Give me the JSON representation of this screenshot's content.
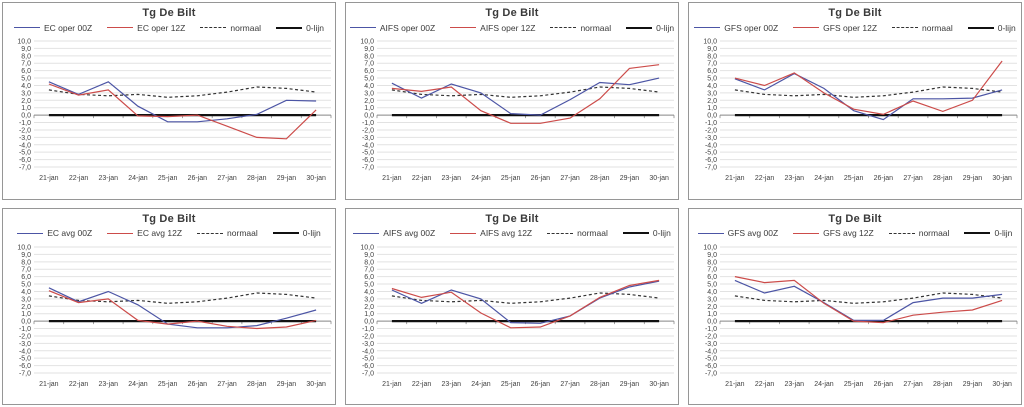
{
  "colors": {
    "series_blue": "#4c55a5",
    "series_red": "#cc4c4a",
    "normaal": "#333333",
    "zero_line": "#111111",
    "grid": "#e2e2e2",
    "axis": "#8a8a8a",
    "panel_border": "#969696",
    "text": "#3a3a3a"
  },
  "axis": {
    "ytick_labels": [
      "10,0",
      "9,0",
      "8,0",
      "7,0",
      "6,0",
      "5,0",
      "4,0",
      "3,0",
      "2,0",
      "1,0",
      "0,0",
      "-1,0",
      "-2,0",
      "-3,0",
      "-4,0",
      "-5,0",
      "-6,0",
      "-7,0"
    ],
    "ylim": [
      -7,
      10
    ],
    "grid": true,
    "legend_position": "top"
  },
  "chart_data": [
    {
      "type": "line",
      "title": "Tg De Bilt",
      "categories": [
        "21-jan",
        "22-jan",
        "23-jan",
        "24-jan",
        "25-jan",
        "26-jan",
        "27-jan",
        "28-jan",
        "29-jan",
        "30-jan"
      ],
      "ylim": [
        -7,
        10
      ],
      "series": [
        {
          "name": "EC oper 00Z",
          "color": "#4c55a5",
          "style": "solid",
          "values": [
            4.5,
            2.8,
            4.5,
            1.2,
            -0.9,
            -0.9,
            -0.5,
            0.1,
            2.0,
            1.9
          ]
        },
        {
          "name": "EC oper 12Z",
          "color": "#cc4c4a",
          "style": "solid",
          "values": [
            4.2,
            2.7,
            3.4,
            -0.1,
            -0.2,
            0.0,
            -1.5,
            -3.0,
            -3.2,
            0.7
          ]
        },
        {
          "name": "normaal",
          "color": "#333333",
          "style": "dashed",
          "values": [
            3.4,
            2.8,
            2.6,
            2.8,
            2.4,
            2.6,
            3.1,
            3.8,
            3.6,
            3.1
          ]
        },
        {
          "name": "0-lijn",
          "color": "#111111",
          "style": "solid-thick",
          "values": [
            0,
            0,
            0,
            0,
            0,
            0,
            0,
            0,
            0,
            0
          ]
        }
      ]
    },
    {
      "type": "line",
      "title": "Tg De Bilt",
      "categories": [
        "21-jan",
        "22-jan",
        "23-jan",
        "24-jan",
        "25-jan",
        "26-jan",
        "27-jan",
        "28-jan",
        "29-jan",
        "30-jan"
      ],
      "ylim": [
        -7,
        10
      ],
      "series": [
        {
          "name": "AIFS oper 00Z",
          "color": "#4c55a5",
          "style": "solid",
          "values": [
            4.3,
            2.3,
            4.2,
            3.0,
            0.2,
            0.0,
            2.1,
            4.4,
            4.1,
            5.0
          ]
        },
        {
          "name": "AIFS oper 12Z",
          "color": "#cc4c4a",
          "style": "solid",
          "values": [
            3.6,
            3.2,
            3.8,
            0.6,
            -1.1,
            -1.1,
            -0.4,
            2.2,
            6.3,
            6.8
          ]
        },
        {
          "name": "normaal",
          "color": "#333333",
          "style": "dashed",
          "values": [
            3.4,
            2.8,
            2.6,
            2.8,
            2.4,
            2.6,
            3.1,
            3.8,
            3.6,
            3.1
          ]
        },
        {
          "name": "0-lijn",
          "color": "#111111",
          "style": "solid-thick",
          "values": [
            0,
            0,
            0,
            0,
            0,
            0,
            0,
            0,
            0,
            0
          ]
        }
      ]
    },
    {
      "type": "line",
      "title": "Tg De Bilt",
      "categories": [
        "21-jan",
        "22-jan",
        "23-jan",
        "24-jan",
        "25-jan",
        "26-jan",
        "27-jan",
        "28-jan",
        "29-jan",
        "30-jan"
      ],
      "ylim": [
        -7,
        10
      ],
      "series": [
        {
          "name": "GFS oper 00Z",
          "color": "#4c55a5",
          "style": "solid",
          "values": [
            4.9,
            3.4,
            5.6,
            3.6,
            0.6,
            -0.6,
            2.2,
            2.2,
            2.3,
            3.4
          ]
        },
        {
          "name": "GFS oper 12Z",
          "color": "#cc4c4a",
          "style": "solid",
          "values": [
            5.0,
            4.0,
            5.7,
            3.0,
            0.8,
            0.1,
            1.9,
            0.5,
            2.0,
            7.3
          ]
        },
        {
          "name": "normaal",
          "color": "#333333",
          "style": "dashed",
          "values": [
            3.4,
            2.8,
            2.6,
            2.8,
            2.4,
            2.6,
            3.1,
            3.8,
            3.6,
            3.1
          ]
        },
        {
          "name": "0-lijn",
          "color": "#111111",
          "style": "solid-thick",
          "values": [
            0,
            0,
            0,
            0,
            0,
            0,
            0,
            0,
            0,
            0
          ]
        }
      ]
    },
    {
      "type": "line",
      "title": "Tg De Bilt",
      "categories": [
        "21-jan",
        "22-jan",
        "23-jan",
        "24-jan",
        "25-jan",
        "26-jan",
        "27-jan",
        "28-jan",
        "29-jan",
        "30-jan"
      ],
      "ylim": [
        -7,
        10
      ],
      "series": [
        {
          "name": "EC avg 00Z",
          "color": "#4c55a5",
          "style": "solid",
          "values": [
            4.5,
            2.6,
            4.0,
            2.2,
            -0.4,
            -0.9,
            -0.9,
            -0.6,
            0.4,
            1.5
          ]
        },
        {
          "name": "EC avg 12Z",
          "color": "#cc4c4a",
          "style": "solid",
          "values": [
            4.1,
            2.5,
            3.0,
            0.1,
            -0.4,
            0.0,
            -0.7,
            -1.0,
            -0.8,
            0.1
          ]
        },
        {
          "name": "normaal",
          "color": "#333333",
          "style": "dashed",
          "values": [
            3.4,
            2.8,
            2.6,
            2.8,
            2.4,
            2.6,
            3.1,
            3.8,
            3.6,
            3.1
          ]
        },
        {
          "name": "0-lijn",
          "color": "#111111",
          "style": "solid-thick",
          "values": [
            0,
            0,
            0,
            0,
            0,
            0,
            0,
            0,
            0,
            0
          ]
        }
      ]
    },
    {
      "type": "line",
      "title": "Tg De Bilt",
      "categories": [
        "21-jan",
        "22-jan",
        "23-jan",
        "24-jan",
        "25-jan",
        "26-jan",
        "27-jan",
        "28-jan",
        "29-jan",
        "30-jan"
      ],
      "ylim": [
        -7,
        10
      ],
      "series": [
        {
          "name": "AIFS avg 00Z",
          "color": "#4c55a5",
          "style": "solid",
          "values": [
            4.2,
            2.4,
            4.2,
            3.0,
            -0.2,
            -0.3,
            0.7,
            3.1,
            4.6,
            5.4
          ]
        },
        {
          "name": "AIFS avg 12Z",
          "color": "#cc4c4a",
          "style": "solid",
          "values": [
            4.4,
            3.2,
            3.9,
            1.1,
            -0.9,
            -0.8,
            0.7,
            3.2,
            4.8,
            5.5
          ]
        },
        {
          "name": "normaal",
          "color": "#333333",
          "style": "dashed",
          "values": [
            3.4,
            2.8,
            2.6,
            2.8,
            2.4,
            2.6,
            3.1,
            3.8,
            3.6,
            3.1
          ]
        },
        {
          "name": "0-lijn",
          "color": "#111111",
          "style": "solid-thick",
          "values": [
            0,
            0,
            0,
            0,
            0,
            0,
            0,
            0,
            0,
            0
          ]
        }
      ]
    },
    {
      "type": "line",
      "title": "Tg De Bilt",
      "categories": [
        "21-jan",
        "22-jan",
        "23-jan",
        "24-jan",
        "25-jan",
        "26-jan",
        "27-jan",
        "28-jan",
        "29-jan",
        "30-jan"
      ],
      "ylim": [
        -7,
        10
      ],
      "series": [
        {
          "name": "GFS avg 00Z",
          "color": "#4c55a5",
          "style": "solid",
          "values": [
            5.5,
            3.8,
            4.7,
            2.5,
            0.1,
            0.1,
            2.5,
            3.1,
            3.1,
            3.6
          ]
        },
        {
          "name": "GFS avg 12Z",
          "color": "#cc4c4a",
          "style": "solid",
          "values": [
            6.0,
            5.2,
            5.5,
            2.4,
            0.0,
            -0.2,
            0.8,
            1.2,
            1.5,
            2.8
          ]
        },
        {
          "name": "normaal",
          "color": "#333333",
          "style": "dashed",
          "values": [
            3.4,
            2.8,
            2.6,
            2.8,
            2.4,
            2.6,
            3.1,
            3.8,
            3.6,
            3.1
          ]
        },
        {
          "name": "0-lijn",
          "color": "#111111",
          "style": "solid-thick",
          "values": [
            0,
            0,
            0,
            0,
            0,
            0,
            0,
            0,
            0,
            0
          ]
        }
      ]
    }
  ]
}
